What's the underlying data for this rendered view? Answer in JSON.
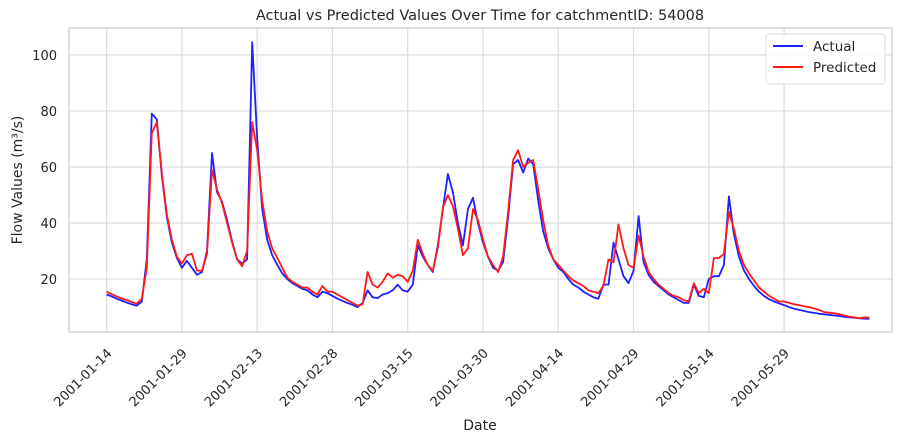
{
  "chart_data": {
    "type": "line",
    "title": "Actual vs Predicted Values Over Time for catchmentID: 54008",
    "xlabel": "Date",
    "ylabel": "Flow Values (m³/s)",
    "x_start": "2001-01-14",
    "x_tick_labels": [
      "2001-01-14",
      "2001-01-29",
      "2001-02-13",
      "2001-02-28",
      "2001-03-15",
      "2001-03-30",
      "2001-04-14",
      "2001-04-29",
      "2001-05-14",
      "2001-05-29"
    ],
    "x_tick_day_offsets": [
      0,
      15,
      30,
      45,
      60,
      75,
      90,
      105,
      120,
      135
    ],
    "y_ticks": [
      20,
      40,
      60,
      80,
      100
    ],
    "ylim": [
      1.1,
      109.6
    ],
    "xlim_days": [
      -7.5,
      156.5
    ],
    "grid": true,
    "legend": {
      "position": "upper right",
      "entries": [
        {
          "label": "Actual",
          "color": "#1f1fff"
        },
        {
          "label": "Predicted",
          "color": "#ff1a1a"
        }
      ]
    },
    "series": [
      {
        "name": "Actual",
        "color": "#1f1fff",
        "values": [
          14.5,
          13.8,
          13.0,
          12.3,
          11.6,
          11.0,
          10.5,
          12.0,
          27.0,
          79.0,
          77.0,
          57.0,
          42.0,
          33.0,
          27.5,
          24.0,
          26.5,
          24.0,
          21.5,
          22.5,
          30.0,
          65.0,
          51.0,
          47.5,
          41.0,
          33.5,
          27.0,
          25.5,
          27.0,
          104.5,
          70.0,
          45.0,
          34.0,
          28.5,
          25.0,
          22.0,
          20.0,
          18.5,
          17.5,
          16.5,
          16.0,
          14.5,
          13.5,
          15.5,
          15.0,
          14.0,
          13.0,
          12.2,
          11.5,
          10.8,
          10.0,
          11.5,
          16.0,
          13.5,
          13.2,
          14.5,
          15.0,
          16.0,
          18.0,
          16.0,
          15.5,
          18.0,
          32.0,
          28.0,
          25.0,
          22.5,
          32.0,
          45.0,
          57.5,
          51.0,
          40.0,
          32.0,
          45.0,
          49.0,
          40.0,
          33.0,
          28.0,
          24.0,
          23.0,
          26.0,
          42.0,
          61.0,
          62.5,
          58.0,
          63.0,
          61.0,
          48.0,
          37.0,
          31.0,
          27.0,
          24.0,
          22.5,
          20.0,
          18.0,
          17.0,
          15.5,
          14.5,
          13.5,
          13.0,
          18.0,
          18.0,
          33.0,
          27.0,
          21.0,
          18.5,
          23.0,
          42.5,
          26.0,
          21.5,
          19.0,
          17.5,
          16.0,
          14.5,
          13.5,
          12.5,
          11.5,
          11.5,
          18.0,
          14.0,
          13.5,
          20.0,
          21.0,
          21.0,
          25.0,
          49.5,
          36.0,
          28.0,
          23.0,
          20.0,
          17.5,
          15.5,
          14.0,
          12.8,
          12.0,
          11.3,
          10.7,
          10.0,
          9.4,
          9.0,
          8.6,
          8.2,
          7.9,
          7.6,
          7.4,
          7.2,
          7.0,
          6.8,
          6.5,
          6.3,
          6.2,
          6.0,
          5.9,
          5.8
        ]
      },
      {
        "name": "Predicted",
        "color": "#ff1a1a",
        "values": [
          15.5,
          14.6,
          13.8,
          13.1,
          12.5,
          11.8,
          11.2,
          13.0,
          24.0,
          72.0,
          76.0,
          58.0,
          43.0,
          34.0,
          28.0,
          25.5,
          28.5,
          29.0,
          23.0,
          23.0,
          29.0,
          59.0,
          52.0,
          47.0,
          40.0,
          33.0,
          27.0,
          24.5,
          30.0,
          76.0,
          66.0,
          48.0,
          37.0,
          31.0,
          27.5,
          24.0,
          20.5,
          19.0,
          18.0,
          17.0,
          17.0,
          15.5,
          14.5,
          17.5,
          15.5,
          15.5,
          14.5,
          13.5,
          12.5,
          11.5,
          10.5,
          11.0,
          22.5,
          18.0,
          17.0,
          19.0,
          22.0,
          20.5,
          21.5,
          21.0,
          19.0,
          23.0,
          34.0,
          29.0,
          25.0,
          23.0,
          31.0,
          45.5,
          50.0,
          46.0,
          38.0,
          28.5,
          31.0,
          45.0,
          41.0,
          34.0,
          28.0,
          25.0,
          22.5,
          28.0,
          44.0,
          62.5,
          66.0,
          60.0,
          61.5,
          62.5,
          52.0,
          41.0,
          32.0,
          27.0,
          25.0,
          23.0,
          21.0,
          19.5,
          18.5,
          17.5,
          16.0,
          15.5,
          15.0,
          17.5,
          27.0,
          26.0,
          39.5,
          31.0,
          25.0,
          24.0,
          35.5,
          28.0,
          22.5,
          20.0,
          18.0,
          16.5,
          15.0,
          14.0,
          13.5,
          12.5,
          12.0,
          18.5,
          15.0,
          16.5,
          15.0,
          27.5,
          27.5,
          29.0,
          44.0,
          38.0,
          30.0,
          25.0,
          22.0,
          19.5,
          17.0,
          15.5,
          14.0,
          13.0,
          12.0,
          12.0,
          11.5,
          11.0,
          10.7,
          10.3,
          10.0,
          9.5,
          9.0,
          8.2,
          8.0,
          7.8,
          7.5,
          7.0,
          6.6,
          6.3,
          6.0,
          6.3,
          6.2
        ]
      }
    ]
  }
}
